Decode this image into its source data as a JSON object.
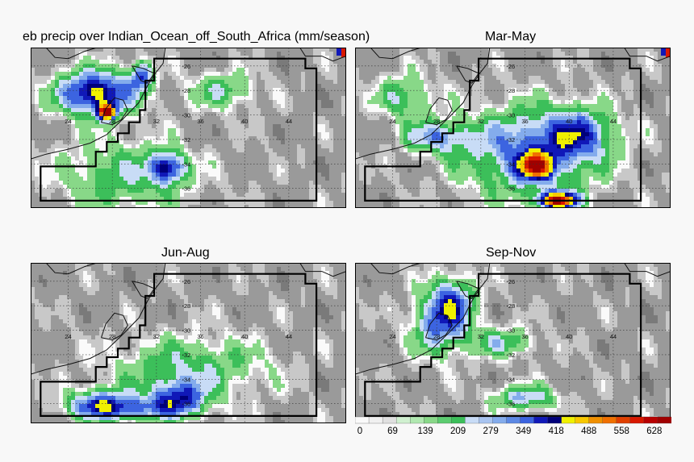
{
  "titles": {
    "djf": "eb precip over Indian_Ocean_off_South_Africa (mm/season)",
    "mam": "Mar-May",
    "jja": "Jun-Aug",
    "son": "Sep-Nov"
  },
  "chart_data": {
    "type": "heatmap",
    "units": "mm/season",
    "colorbar_ticks": [
      "0",
      "69",
      "139",
      "209",
      "279",
      "349",
      "418",
      "488",
      "558",
      "628"
    ],
    "lon_tick_labels": [
      "24",
      "28",
      "32",
      "36",
      "40",
      "44"
    ],
    "lat_tick_labels": [
      "-26",
      "-28",
      "-30",
      "-32",
      "-34",
      "-36"
    ],
    "panels": [
      {
        "id": "djf",
        "title": "eb precip over Indian_Ocean_off_South_Africa (mm/season)",
        "blobs": [
          [
            26.5,
            -28.2,
            3.5,
            1.8,
            380
          ],
          [
            27.5,
            -29.8,
            0.8,
            0.6,
            500
          ],
          [
            30.6,
            -26.8,
            1.0,
            1.2,
            250
          ],
          [
            33,
            -34.3,
            1.5,
            1.2,
            300
          ],
          [
            29,
            -35,
            6,
            3,
            140
          ],
          [
            38,
            -28,
            3,
            1.5,
            140
          ]
        ]
      },
      {
        "id": "mam",
        "title": "Mar-May",
        "blobs": [
          [
            36.5,
            -33,
            6,
            3.5,
            260
          ],
          [
            37,
            -34.2,
            1.5,
            1.0,
            380
          ],
          [
            39,
            -37,
            1.8,
            0.7,
            520
          ],
          [
            28,
            -31.8,
            3,
            1.3,
            200
          ],
          [
            25,
            -28.5,
            2.5,
            1.8,
            150
          ],
          [
            41,
            -31.5,
            3,
            2,
            200
          ]
        ]
      },
      {
        "id": "jja",
        "title": "Jun-Aug",
        "blobs": [
          [
            27,
            -36,
            3,
            1.2,
            240
          ],
          [
            34,
            -35.5,
            2.5,
            1.4,
            260
          ],
          [
            35,
            -33,
            7,
            2.5,
            140
          ],
          [
            30,
            -36.5,
            5,
            1.0,
            170
          ]
        ]
      },
      {
        "id": "son",
        "title": "Sep-Nov",
        "blobs": [
          [
            28.3,
            -29.5,
            2.5,
            2.5,
            240
          ],
          [
            29.5,
            -27.5,
            2,
            2.0,
            200
          ],
          [
            36,
            -35.5,
            3,
            1.0,
            190
          ],
          [
            34,
            -31,
            3,
            1.2,
            150
          ]
        ]
      }
    ]
  }
}
